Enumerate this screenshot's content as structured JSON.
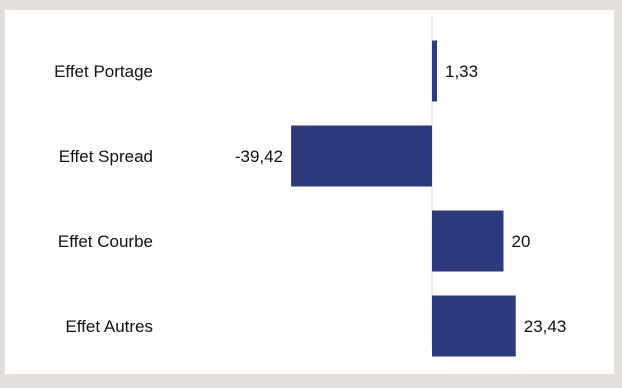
{
  "chart_data": {
    "type": "bar",
    "orientation": "horizontal",
    "categories": [
      "Effet Portage",
      "Effet Spread",
      "Effet Courbe",
      "Effet Autres"
    ],
    "values": [
      1.33,
      -39.42,
      20,
      23.43
    ],
    "value_labels": [
      "1,33",
      "-39,42",
      "20",
      "23,43"
    ],
    "title": "",
    "xlabel": "",
    "ylabel": "",
    "xlim": [
      -40,
      25
    ],
    "grid": false,
    "legend": "none",
    "bar_color": "#2e3a7e",
    "zero_line_color": "#d9d9d9"
  }
}
